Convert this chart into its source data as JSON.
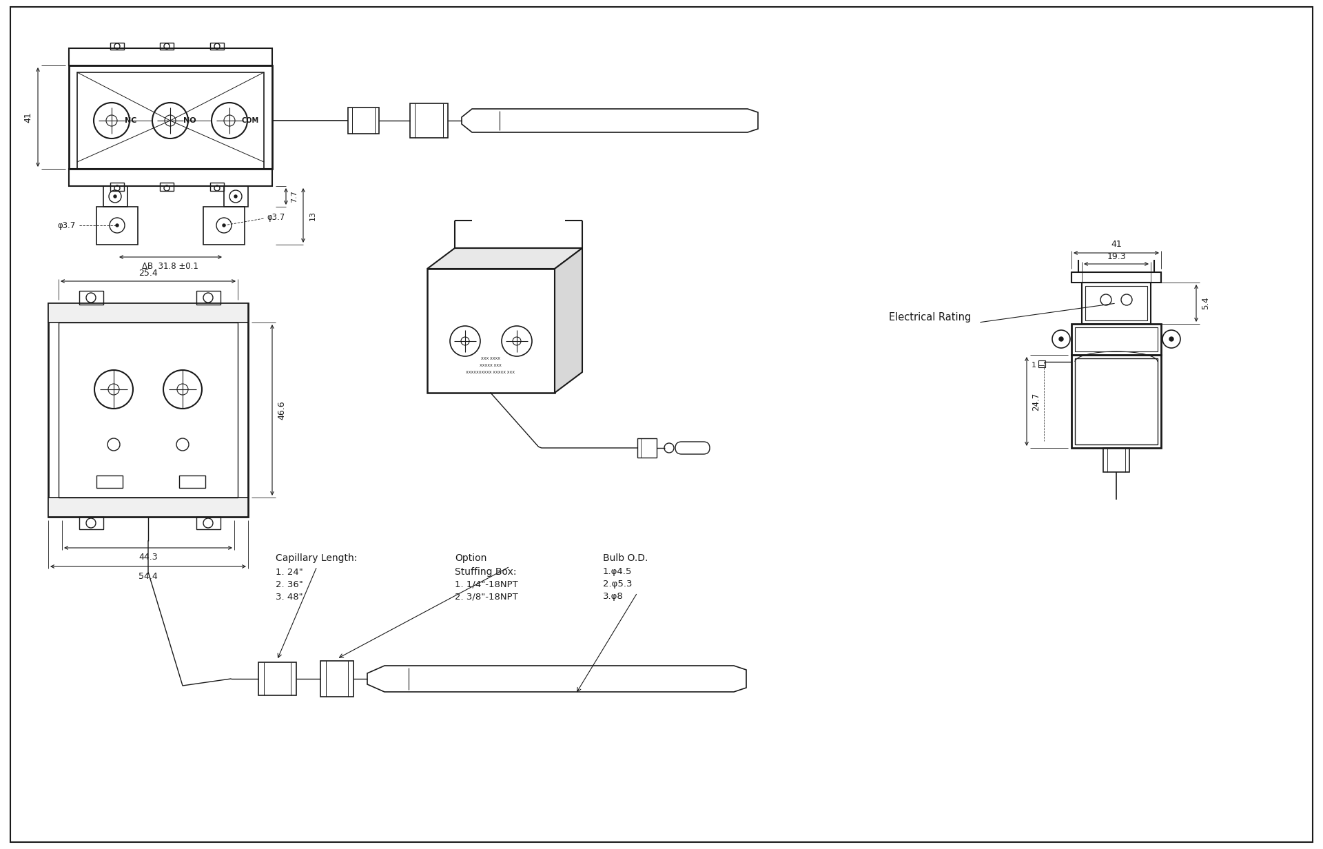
{
  "bg_color": "#ffffff",
  "line_color": "#1a1a1a",
  "annotations": {
    "dim_41_top": "41",
    "dim_41_right": "41",
    "dim_19_3": "19.3",
    "dim_5_4": "5.4",
    "dim_24_7": "24.7",
    "dim_7_7": "7.7",
    "dim_13": "13",
    "dim_3_7_left": "φ3.7",
    "dim_3_7_right": "φ3.7",
    "dim_31_8": "31.8 ±0.1",
    "dim_25_4": "25.4",
    "dim_46_6": "46.6",
    "dim_44_3": "44.3",
    "dim_54_4": "54.4",
    "label_nc": "NC",
    "label_no": "NO",
    "label_com": "COM",
    "electrical_rating": "Electrical Rating",
    "capillary_length": "Capillary Length:",
    "cap_1": "1. 24\"",
    "cap_2": "2. 36\"",
    "cap_3": "3. 48\"",
    "option_title": "Option",
    "stuffing_title": "Stuffing Box:",
    "stuffing_1": "1. 1/4\"-18NPT",
    "stuffing_2": "2. 3/8\"-18NPT",
    "bulb_od": "Bulb O.D.",
    "bulb_1": "1.φ4.5",
    "bulb_2": "2.φ5.3",
    "bulb_3": "3.φ8"
  }
}
